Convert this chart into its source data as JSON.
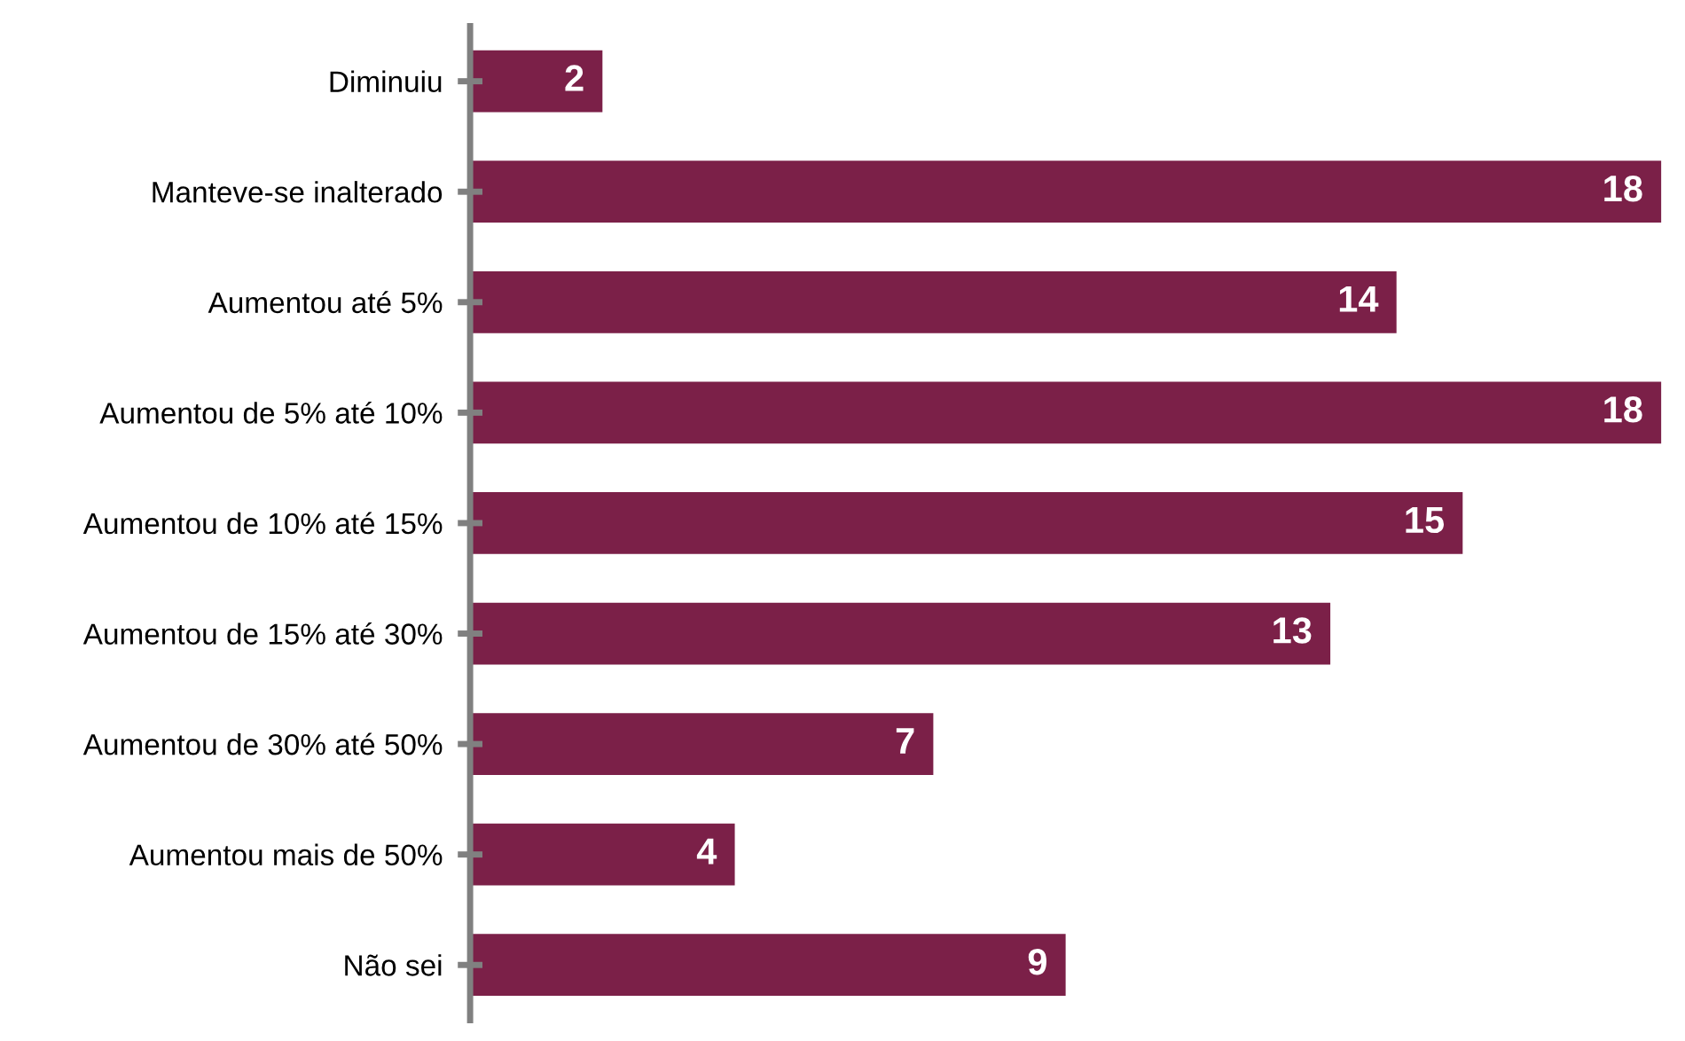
{
  "chart_data": {
    "type": "bar",
    "orientation": "horizontal",
    "data_labels": true,
    "grid": false,
    "legend": false,
    "categories": [
      "Diminuiu",
      "Manteve-se inalterado",
      "Aumentou até 5%",
      "Aumentou de 5% até 10%",
      "Aumentou de 10% até 15%",
      "Aumentou de 15% até 30%",
      "Aumentou de 30% até 50%",
      "Aumentou mais de 50%",
      "Não sei"
    ],
    "values": [
      2,
      18,
      14,
      18,
      15,
      13,
      7,
      4,
      9
    ],
    "color": "#7b2048"
  }
}
